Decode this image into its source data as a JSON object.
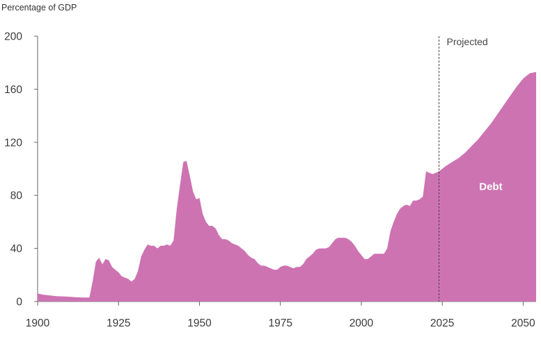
{
  "chart_data": {
    "type": "area",
    "ylabel": "Percentage of GDP",
    "xlim": [
      1900,
      2054
    ],
    "ylim": [
      0,
      200
    ],
    "x_ticks": [
      1900,
      1925,
      1950,
      1975,
      2000,
      2025,
      2050
    ],
    "y_ticks": [
      0,
      40,
      80,
      120,
      160,
      200
    ],
    "grid": false,
    "projection_start": 2024,
    "projection_label": "Projected",
    "series": [
      {
        "name": "Debt",
        "color": "#cd73b2",
        "x": [
          1900,
          1902,
          1904,
          1906,
          1908,
          1910,
          1912,
          1914,
          1916,
          1917,
          1918,
          1919,
          1920,
          1921,
          1922,
          1923,
          1924,
          1925,
          1926,
          1927,
          1928,
          1929,
          1930,
          1931,
          1932,
          1933,
          1934,
          1935,
          1936,
          1937,
          1938,
          1939,
          1940,
          1941,
          1942,
          1943,
          1944,
          1945,
          1946,
          1947,
          1948,
          1949,
          1950,
          1951,
          1952,
          1953,
          1954,
          1955,
          1956,
          1957,
          1958,
          1959,
          1960,
          1961,
          1962,
          1963,
          1964,
          1965,
          1966,
          1967,
          1968,
          1969,
          1970,
          1971,
          1972,
          1973,
          1974,
          1975,
          1976,
          1977,
          1978,
          1979,
          1980,
          1981,
          1982,
          1983,
          1984,
          1985,
          1986,
          1987,
          1988,
          1989,
          1990,
          1991,
          1992,
          1993,
          1994,
          1995,
          1996,
          1997,
          1998,
          1999,
          2000,
          2001,
          2002,
          2003,
          2004,
          2005,
          2006,
          2007,
          2008,
          2009,
          2010,
          2011,
          2012,
          2013,
          2014,
          2015,
          2016,
          2017,
          2018,
          2019,
          2020,
          2021,
          2022,
          2023,
          2024,
          2025,
          2026,
          2028,
          2030,
          2032,
          2034,
          2036,
          2038,
          2040,
          2042,
          2044,
          2046,
          2048,
          2050,
          2052,
          2054
        ],
        "values": [
          6,
          5,
          4.5,
          4,
          3.8,
          3.5,
          3.2,
          3,
          3,
          15,
          30,
          33,
          28,
          32,
          31,
          26,
          24,
          22,
          19,
          18,
          17,
          15,
          17,
          23,
          34,
          39,
          43,
          42,
          42,
          40,
          42,
          42,
          43,
          42,
          46,
          70,
          88,
          105,
          106,
          95,
          83,
          77,
          78,
          66,
          60,
          57,
          57,
          55,
          50,
          47,
          47,
          46,
          44,
          43,
          42,
          40,
          38,
          35,
          33,
          32,
          29,
          27,
          27,
          26,
          25,
          24,
          24,
          26,
          27,
          27,
          26,
          25,
          26,
          26,
          28,
          32,
          34,
          36,
          39,
          40,
          40,
          40,
          41,
          44,
          47,
          48,
          48,
          48,
          47,
          45,
          42,
          38,
          35,
          32,
          32,
          34,
          36,
          36,
          36,
          36,
          40,
          53,
          60,
          66,
          70,
          72,
          73,
          72,
          76,
          76,
          77,
          79,
          98,
          97,
          96,
          97,
          98,
          100,
          102,
          105,
          108,
          112,
          117,
          122,
          128,
          134,
          141,
          148,
          155,
          162,
          168,
          172,
          173
        ]
      }
    ]
  }
}
